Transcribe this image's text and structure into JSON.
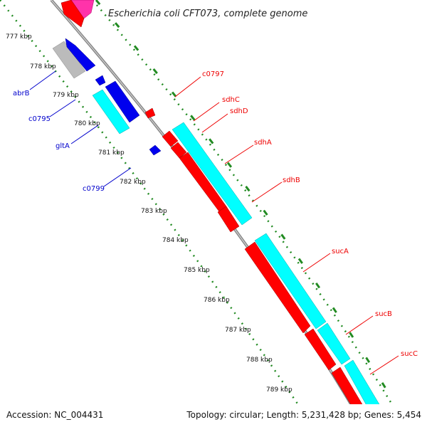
{
  "title": "Escherichia coli CFT073, complete genome",
  "footer": {
    "accession": "Accession: NC_004431",
    "summary": "Topology: circular; Length: 5,231,428 bp; Genes: 5,454"
  },
  "colors": {
    "forward_gene": "#ff0000",
    "reverse_gene": "#0000ee",
    "cds_band": "#00ffff",
    "gray_gene": "#bbbbbb",
    "pink_gene": "#ff33aa",
    "backbone": "#888888",
    "ticks": "#228b22",
    "forward_label": "#ee0000",
    "reverse_label": "#0000cc"
  },
  "kbp_labels": [
    "777 kbp",
    "778 kbp",
    "779 kbp",
    "780 kbp",
    "781 kbp",
    "782 kbp",
    "783 kbp",
    "784 kbp",
    "785 kbp",
    "786 kbp",
    "787 kbp",
    "788 kbp",
    "789 kbp"
  ],
  "forward_genes": [
    "c0797",
    "sdhC",
    "sdhD",
    "sdhA",
    "sdhB",
    "sucA",
    "sucB",
    "sucC"
  ],
  "reverse_genes": [
    "abrB",
    "c0795",
    "gltA",
    "c0799"
  ]
}
